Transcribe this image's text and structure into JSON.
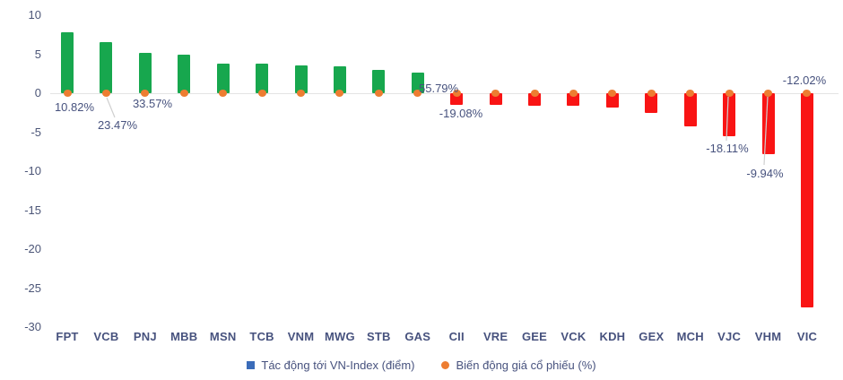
{
  "chart_data": {
    "type": "bar",
    "title": "",
    "categories": [
      "FPT",
      "VCB",
      "PNJ",
      "MBB",
      "MSN",
      "TCB",
      "VNM",
      "MWG",
      "STB",
      "GAS",
      "CII",
      "VRE",
      "GEE",
      "VCK",
      "KDH",
      "GEX",
      "MCH",
      "VJC",
      "VHM",
      "VIC"
    ],
    "series": [
      {
        "name": "Tác động tới VN-Index (điểm)",
        "type": "bar",
        "values": [
          7.8,
          6.5,
          5.2,
          4.9,
          3.8,
          3.8,
          3.6,
          3.4,
          3.0,
          2.6,
          -1.5,
          -1.5,
          -1.6,
          -1.6,
          -1.8,
          -2.5,
          -4.3,
          -5.5,
          -7.8,
          -27.5
        ]
      },
      {
        "name": "Biến động giá cổ phiếu (%)",
        "type": "point",
        "note": "orange dot plotted at the zero line for every ticker; only some values are labeled",
        "labeled_values": [
          {
            "ticker": "FPT",
            "label": "10.82%"
          },
          {
            "ticker": "VCB",
            "label": "23.47%"
          },
          {
            "ticker": "PNJ",
            "label": "33.57%"
          },
          {
            "ticker": "GAS",
            "label": "55.79%"
          },
          {
            "ticker": "CII",
            "label": "-19.08%"
          },
          {
            "ticker": "VJC",
            "label": "-18.11%"
          },
          {
            "ticker": "VHM",
            "label": "-9.94%"
          },
          {
            "ticker": "VIC",
            "label": "-12.02%"
          }
        ]
      }
    ],
    "yticks": [
      10,
      5,
      0,
      -5,
      -10,
      -15,
      -20,
      -25,
      -30
    ],
    "ylim": [
      -30,
      10
    ],
    "xlabel": "",
    "ylabel": "",
    "grid": "zero-line-only",
    "legend_position": "bottom-center",
    "colors": {
      "positive_bar": "#17A74E",
      "negative_bar": "#F91414",
      "dot": "#ED7D31",
      "legend_square": "#3B6CB9",
      "text": "#47527E",
      "axis_line": "#E4E4E4",
      "callout_line": "#CFCFCF"
    },
    "legend": [
      {
        "marker": "square",
        "color": "#3B6CB9",
        "label": "Tác động tới VN-Index (điểm)"
      },
      {
        "marker": "circle",
        "color": "#ED7D31",
        "label": "Biến động giá cổ phiếu (%)"
      }
    ]
  }
}
